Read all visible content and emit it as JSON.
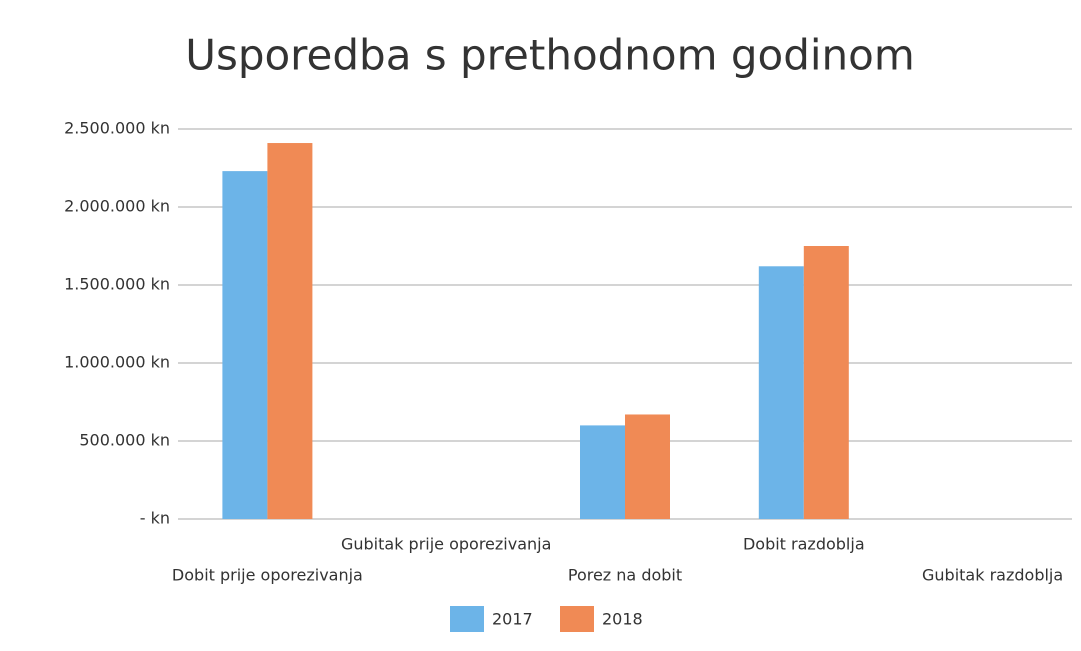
{
  "chart_data": {
    "type": "bar",
    "title": "Usporedba s prethodnom godinom",
    "categories": [
      "Dobit prije oporezivanja",
      "Gubitak prije oporezivanja",
      "Porez na dobit",
      "Dobit razdoblja",
      "Gubitak razdoblja"
    ],
    "series": [
      {
        "name": "2017",
        "color": "#6cb4e8",
        "values": [
          2230000,
          0,
          600000,
          1620000,
          0
        ]
      },
      {
        "name": "2018",
        "color": "#f08a55",
        "values": [
          2410000,
          0,
          670000,
          1750000,
          0
        ]
      }
    ],
    "ylim": [
      0,
      2500000
    ],
    "yticks": [
      {
        "value": 0,
        "label": "- kn"
      },
      {
        "value": 500000,
        "label": "500.000 kn"
      },
      {
        "value": 1000000,
        "label": "1.000.000 kn"
      },
      {
        "value": 1500000,
        "label": "1.500.000 kn"
      },
      {
        "value": 2000000,
        "label": "2.000.000 kn"
      },
      {
        "value": 2500000,
        "label": "2.500.000 kn"
      }
    ],
    "grid": true,
    "legend": "bottom"
  }
}
